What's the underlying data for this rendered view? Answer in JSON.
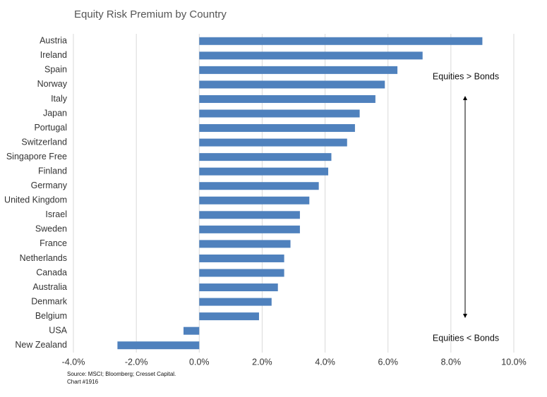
{
  "chart_data": {
    "type": "hbar",
    "title": "Equity Risk Premium by Country",
    "categories": [
      "Austria",
      "Ireland",
      "Spain",
      "Norway",
      "Italy",
      "Japan",
      "Portugal",
      "Switzerland",
      "Singapore Free",
      "Finland",
      "Germany",
      "United Kingdom",
      "Israel",
      "Sweden",
      "France",
      "Netherlands",
      "Canada",
      "Australia",
      "Denmark",
      "Belgium",
      "USA",
      "New Zealand"
    ],
    "values": [
      9.0,
      7.1,
      6.3,
      5.9,
      5.6,
      5.1,
      4.95,
      4.7,
      4.2,
      4.1,
      3.8,
      3.5,
      3.2,
      3.2,
      2.9,
      2.7,
      2.7,
      2.5,
      2.3,
      1.9,
      -0.5,
      -2.6
    ],
    "color": "#4f81bd",
    "xlim": [
      -4,
      10
    ],
    "xticks": [
      {
        "value": -4,
        "label": "-4.0%"
      },
      {
        "value": -2,
        "label": "-2.0%"
      },
      {
        "value": 0,
        "label": "0.0%"
      },
      {
        "value": 2,
        "label": "2.0%"
      },
      {
        "value": 4,
        "label": "4.0%"
      },
      {
        "value": 6,
        "label": "6.0%"
      },
      {
        "value": 8,
        "label": "8.0%"
      },
      {
        "value": 10,
        "label": "10.0%"
      }
    ],
    "grid": true,
    "annotations": [
      "Equities > Bonds",
      "Equities < Bonds"
    ],
    "source": [
      "Source: MSCI; Bloomberg; Cresset Capital.",
      "Chart #1916"
    ]
  }
}
